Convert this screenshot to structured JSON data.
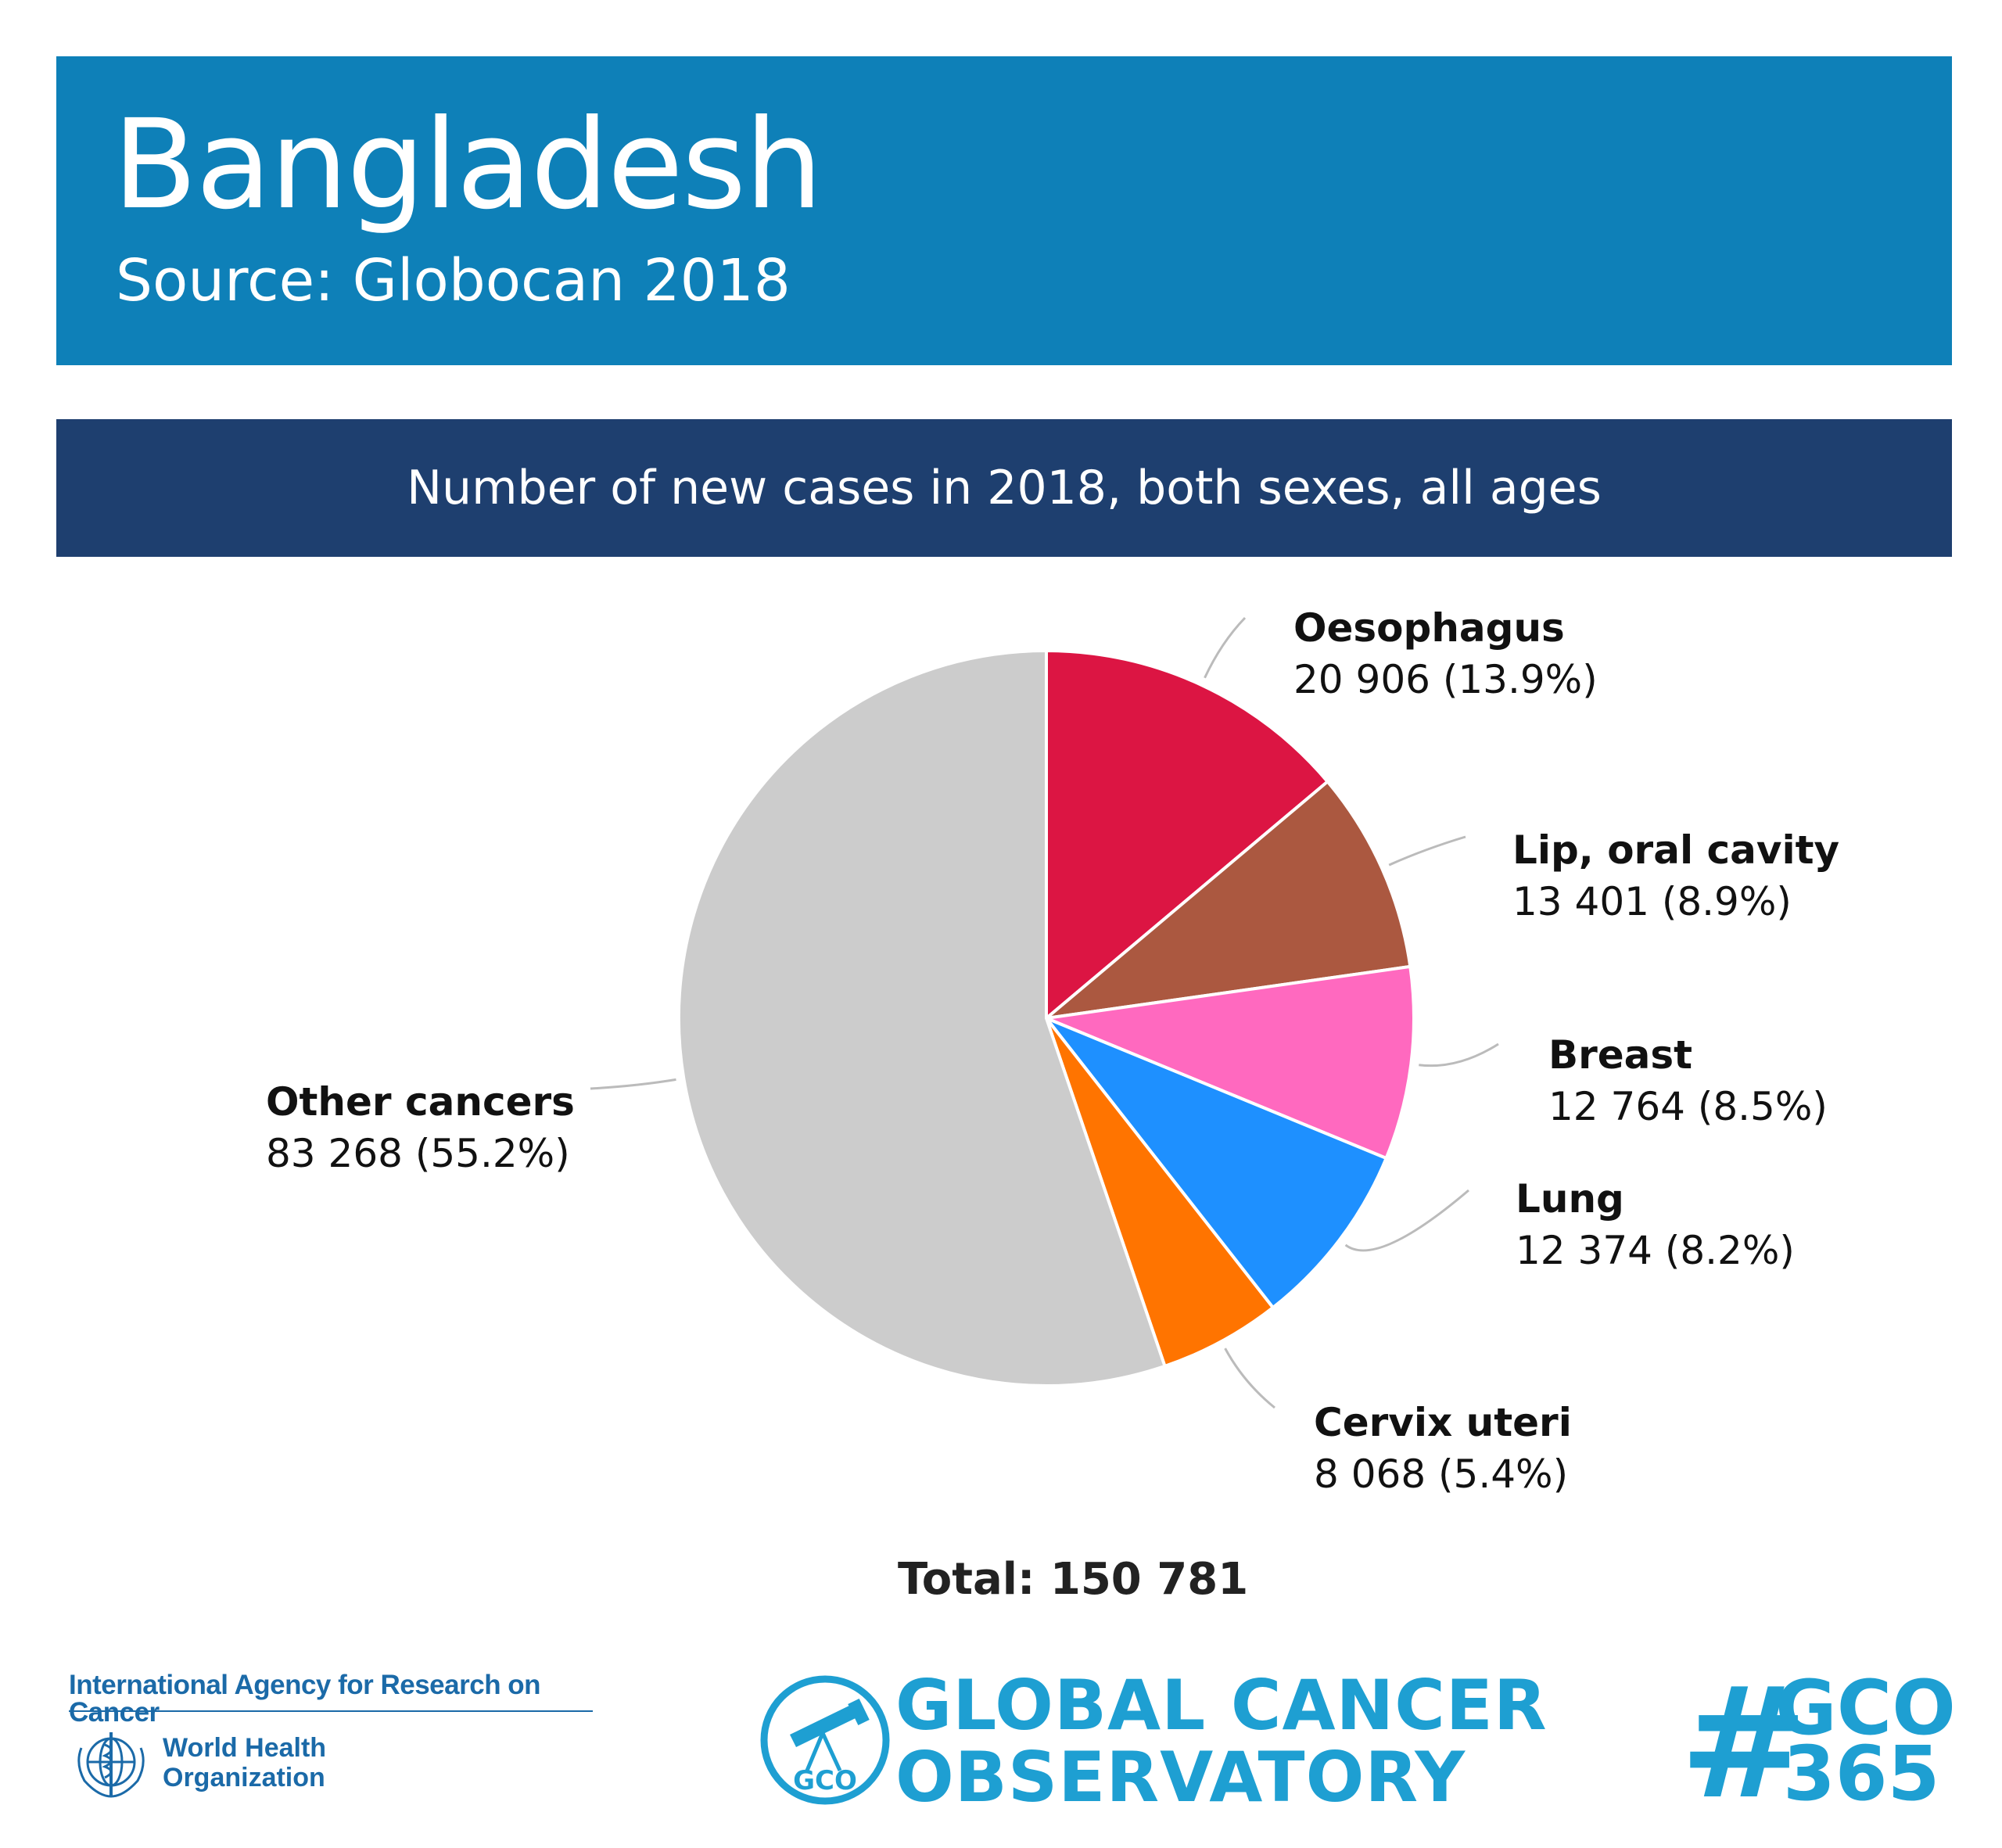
{
  "header": {
    "title": "Bangladesh",
    "source": "Source: Globocan 2018"
  },
  "chart_data": {
    "type": "pie",
    "title": "Number of new cases in 2018, both sexes, all ages",
    "total_label": "Total: 150 781",
    "total": 150781,
    "slices": [
      {
        "label": "Oesophagus",
        "value": 20906,
        "percent": 13.9,
        "value_text": "20 906 (13.9%)",
        "color": "#dc1543"
      },
      {
        "label": "Lip, oral cavity",
        "value": 13401,
        "percent": 8.9,
        "value_text": "13 401 (8.9%)",
        "color": "#ab5840"
      },
      {
        "label": "Breast",
        "value": 12764,
        "percent": 8.5,
        "value_text": "12 764 (8.5%)",
        "color": "#ff69bf"
      },
      {
        "label": "Lung",
        "value": 12374,
        "percent": 8.2,
        "value_text": "12 374 (8.2%)",
        "color": "#1e90ff"
      },
      {
        "label": "Cervix uteri",
        "value": 8068,
        "percent": 5.4,
        "value_text": "8 068 (5.4%)",
        "color": "#ff7400"
      },
      {
        "label": "Other cancers",
        "value": 83268,
        "percent": 55.2,
        "value_text": "83 268 (55.2%)",
        "color": "#cccccc"
      }
    ]
  },
  "footer": {
    "iarc": "International Agency for Research on Cancer",
    "who_line1": "World Health",
    "who_line2": "Organization",
    "gco_badge": "GCO",
    "gco_line1": "GLOBAL CANCER",
    "gco_line2": "OBSERVATORY",
    "hashtag_symbol": "#",
    "hashtag_line1": "GCO",
    "hashtag_line2": "365"
  }
}
